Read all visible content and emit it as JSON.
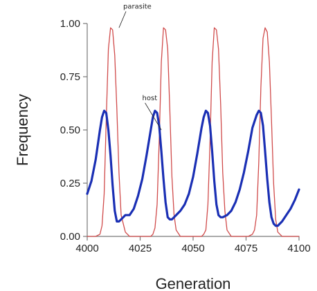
{
  "chart_data": {
    "type": "line",
    "title": "",
    "xlabel": "Generation",
    "ylabel": "Frequency",
    "xlim": [
      4000,
      4100
    ],
    "ylim": [
      0,
      1
    ],
    "x_ticks": [
      4000,
      4025,
      4050,
      4075,
      4100
    ],
    "x_tick_labels": [
      "4000",
      "4025",
      "4050",
      "4075",
      "4100"
    ],
    "y_ticks": [
      0,
      0.25,
      0.5,
      0.75,
      1
    ],
    "y_tick_labels": [
      "0.00",
      "0.25",
      "0.50",
      "0.75",
      "1.00"
    ],
    "grid": false,
    "legend": "none",
    "series": [
      {
        "color": "#d04a4a",
        "x": [
          4000,
          4002,
          4004,
          4006,
          4007,
          4008,
          4009,
          4010,
          4011,
          4012,
          4013,
          4014,
          4015,
          4016,
          4018,
          4020,
          4022,
          4024,
          4026,
          4028,
          4030,
          4031,
          4032,
          4033,
          4034,
          4035,
          4036,
          4037,
          4038,
          4039,
          4040,
          4041,
          4042,
          4044,
          4046,
          4048,
          4050,
          4052,
          4054,
          4055,
          4056,
          4057,
          4058,
          4059,
          4060,
          4061,
          4062,
          4063,
          4064,
          4065,
          4066,
          4068,
          4070,
          4072,
          4074,
          4076,
          4078,
          4079,
          4080,
          4081,
          4082,
          4083,
          4084,
          4085,
          4086,
          4087,
          4088,
          4089,
          4090,
          4091,
          4092,
          4094,
          4096,
          4098,
          4100
        ],
        "values": [
          0,
          0,
          0,
          0.01,
          0.05,
          0.2,
          0.55,
          0.88,
          0.98,
          0.97,
          0.85,
          0.6,
          0.3,
          0.1,
          0.02,
          0,
          0,
          0,
          0,
          0,
          0,
          0.01,
          0.04,
          0.15,
          0.45,
          0.82,
          0.98,
          0.97,
          0.88,
          0.6,
          0.28,
          0.1,
          0.03,
          0,
          0,
          0,
          0,
          0,
          0,
          0.01,
          0.03,
          0.15,
          0.45,
          0.82,
          0.98,
          0.97,
          0.88,
          0.62,
          0.3,
          0.12,
          0.03,
          0,
          0,
          0,
          0,
          0,
          0.01,
          0.03,
          0.1,
          0.35,
          0.7,
          0.93,
          0.98,
          0.96,
          0.82,
          0.55,
          0.25,
          0.08,
          0.02,
          0.01,
          0,
          0,
          0,
          0,
          0
        ]
      },
      {
        "color": "#1a2fb4",
        "x": [
          4000,
          4002,
          4004,
          4006,
          4007,
          4008,
          4009,
          4010,
          4011,
          4012,
          4013,
          4014,
          4015,
          4016,
          4018,
          4020,
          4022,
          4024,
          4026,
          4028,
          4030,
          4031,
          4032,
          4033,
          4034,
          4035,
          4036,
          4037,
          4038,
          4039,
          4040,
          4042,
          4044,
          4046,
          4048,
          4050,
          4052,
          4054,
          4055,
          4056,
          4057,
          4058,
          4059,
          4060,
          4061,
          4062,
          4063,
          4064,
          4066,
          4068,
          4070,
          4072,
          4074,
          4076,
          4078,
          4080,
          4081,
          4082,
          4083,
          4084,
          4085,
          4086,
          4087,
          4088,
          4089,
          4090,
          4092,
          4094,
          4096,
          4098,
          4100
        ],
        "values": [
          0.2,
          0.26,
          0.36,
          0.5,
          0.56,
          0.59,
          0.58,
          0.5,
          0.38,
          0.24,
          0.12,
          0.07,
          0.07,
          0.08,
          0.1,
          0.1,
          0.13,
          0.19,
          0.27,
          0.38,
          0.5,
          0.56,
          0.59,
          0.58,
          0.52,
          0.4,
          0.27,
          0.16,
          0.09,
          0.08,
          0.08,
          0.1,
          0.12,
          0.15,
          0.2,
          0.28,
          0.39,
          0.51,
          0.56,
          0.59,
          0.58,
          0.52,
          0.4,
          0.26,
          0.15,
          0.1,
          0.09,
          0.09,
          0.1,
          0.12,
          0.16,
          0.22,
          0.3,
          0.4,
          0.51,
          0.57,
          0.59,
          0.58,
          0.52,
          0.4,
          0.27,
          0.16,
          0.09,
          0.06,
          0.05,
          0.05,
          0.07,
          0.1,
          0.13,
          0.17,
          0.22
        ]
      }
    ],
    "annotations": [
      {
        "text": "parasite",
        "x": 4015,
        "y": 0.98,
        "text_x": 4017,
        "text_y": 1.07
      },
      {
        "text": "host",
        "x": 4035,
        "y": 0.5,
        "text_x": 4026,
        "text_y": 0.64
      }
    ]
  }
}
